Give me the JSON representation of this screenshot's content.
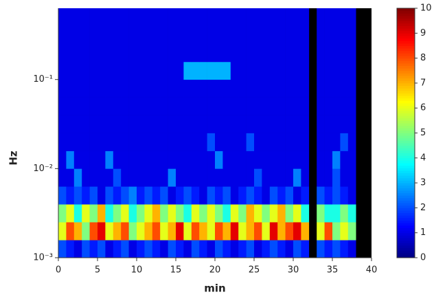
{
  "chart_data": {
    "type": "heatmap",
    "x_label": "min",
    "y_label": "Hz",
    "xbins": [
      0,
      1,
      2,
      3,
      4,
      5,
      6,
      7,
      8,
      9,
      10,
      11,
      12,
      13,
      14,
      15,
      16,
      17,
      18,
      19,
      20,
      21,
      22,
      23,
      24,
      25,
      26,
      27,
      28,
      29,
      30,
      31,
      32,
      33,
      34,
      35,
      36,
      37,
      38,
      39,
      40
    ],
    "ybins": [
      0.001,
      0.00158,
      0.00251,
      0.00398,
      0.00631,
      0.01,
      0.0158,
      0.0251,
      0.0398,
      0.0631,
      0.1,
      0.158,
      0.251,
      0.398,
      0.631
    ],
    "xlim": [
      0,
      40
    ],
    "xticks": [
      0,
      5,
      10,
      15,
      20,
      25,
      30,
      35,
      40
    ],
    "ylim": [
      0.001,
      0.631
    ],
    "log_y": true,
    "yticks": [
      {
        "value": 0.001,
        "label": "10⁻³"
      },
      {
        "value": 0.01,
        "label": "10⁻²"
      },
      {
        "value": 0.1,
        "label": "10⁻¹"
      }
    ],
    "colormap": "jet",
    "clim": [
      0,
      10
    ],
    "cticks": [
      0,
      1,
      2,
      3,
      4,
      5,
      6,
      7,
      8,
      9,
      10
    ],
    "z": [
      [
        2,
        1.5,
        1,
        2,
        1.5,
        2,
        1,
        1.5,
        2,
        1,
        1.5,
        2,
        1.5,
        1,
        2,
        1.5,
        1,
        2,
        1.5,
        1,
        2,
        1.5,
        1,
        1.5,
        2,
        1,
        1.5,
        2,
        1.5,
        1,
        2,
        1.5,
        null,
        2,
        1.5,
        2,
        1.5,
        1,
        null,
        null
      ],
      [
        6,
        8,
        7,
        5,
        8,
        9,
        6,
        7,
        8,
        5,
        6,
        7,
        8,
        6,
        7,
        9,
        6,
        8,
        7,
        6,
        8,
        7,
        9,
        6,
        7,
        8,
        6,
        9,
        7,
        8,
        9,
        7,
        null,
        6,
        8,
        5,
        6,
        5,
        null,
        null
      ],
      [
        5,
        6,
        4,
        6,
        5,
        7,
        4,
        5,
        6,
        4,
        5,
        6,
        7,
        5,
        6,
        5,
        4,
        6,
        5,
        6,
        5,
        4,
        6,
        5,
        7,
        6,
        5,
        6,
        7,
        5,
        6,
        4,
        null,
        5,
        4,
        4,
        5,
        4,
        null,
        null
      ],
      [
        2,
        1.5,
        2,
        1.5,
        2,
        1,
        2,
        1.5,
        2,
        2.5,
        1.5,
        2,
        1.5,
        2,
        1,
        1.5,
        2,
        1.5,
        1,
        2,
        1.5,
        2,
        1,
        1.5,
        2,
        1.5,
        1,
        2,
        1.5,
        2,
        1,
        1.5,
        null,
        2,
        1.5,
        2,
        1.5,
        1,
        null,
        null
      ],
      [
        1,
        1,
        2.5,
        1,
        1,
        1,
        1,
        2,
        1,
        1,
        1,
        1,
        1,
        1,
        2.5,
        1,
        1,
        1,
        1,
        1,
        1,
        1,
        1,
        1,
        1,
        2,
        1,
        1,
        1,
        1,
        2.5,
        1,
        null,
        1,
        1,
        2,
        1,
        1,
        null,
        null
      ],
      [
        1,
        2.5,
        1,
        1,
        1,
        1,
        2.5,
        1,
        1,
        1,
        1,
        1,
        1,
        1,
        1,
        1,
        1,
        1,
        1,
        1,
        2.5,
        1,
        1,
        1,
        1,
        1,
        1,
        1,
        1,
        1,
        1,
        1,
        null,
        1,
        1,
        2.5,
        1,
        1,
        null,
        null
      ],
      [
        1,
        1,
        1,
        1,
        1,
        1,
        1,
        1,
        1,
        1,
        1,
        1,
        1,
        1,
        1,
        1,
        1,
        1,
        1,
        2,
        1,
        1,
        1,
        1,
        2,
        1,
        1,
        1,
        1,
        1,
        1,
        1,
        null,
        1,
        1,
        1,
        2,
        1,
        null,
        null
      ],
      [
        1,
        1,
        1,
        1,
        1,
        1,
        1,
        1,
        1,
        1,
        1,
        1,
        1,
        1,
        1,
        1,
        1,
        1,
        1,
        1,
        1,
        1,
        1,
        1,
        1,
        1,
        1,
        1,
        1,
        1,
        1,
        1,
        null,
        1,
        1,
        1,
        1,
        1,
        null,
        null
      ],
      [
        1,
        1,
        1,
        1,
        1,
        1,
        1,
        1,
        1,
        1,
        1,
        1,
        1,
        1,
        1,
        1,
        1,
        1,
        1,
        1,
        1,
        1,
        1,
        1,
        1,
        1,
        1,
        1,
        1,
        1,
        1,
        1,
        null,
        1,
        1,
        1,
        1,
        1,
        null,
        null
      ],
      [
        1,
        1,
        1,
        1,
        1,
        1,
        1,
        1,
        1,
        1,
        1,
        1,
        1,
        1,
        1,
        1,
        1,
        1,
        1,
        1,
        1,
        1,
        1,
        1,
        1,
        1,
        1,
        1,
        1,
        1,
        1,
        1,
        null,
        1,
        1,
        1,
        1,
        1,
        null,
        null
      ],
      [
        1,
        1,
        1,
        1,
        1,
        1,
        1,
        1,
        1,
        1,
        1,
        1,
        1,
        1,
        1,
        1,
        3,
        3,
        3,
        3,
        3,
        3,
        1,
        1,
        1,
        1,
        1,
        1,
        1,
        1,
        1,
        1,
        null,
        1,
        1,
        1,
        1,
        1,
        null,
        null
      ],
      [
        1,
        1,
        1,
        1,
        1,
        1,
        1,
        1,
        1,
        1,
        1,
        1,
        1,
        1,
        1,
        1,
        1,
        1,
        1,
        1,
        1,
        1,
        1,
        1,
        1,
        1,
        1,
        1,
        1,
        1,
        1,
        1,
        null,
        1,
        1,
        1,
        1,
        1,
        null,
        null
      ],
      [
        1,
        1,
        1,
        1,
        1,
        1,
        1,
        1,
        1,
        1,
        1,
        1,
        1,
        1,
        1,
        1,
        1,
        1,
        1,
        1,
        1,
        1,
        1,
        1,
        1,
        1,
        1,
        1,
        1,
        1,
        1,
        1,
        null,
        1,
        1,
        1,
        1,
        1,
        null,
        null
      ],
      [
        1,
        1,
        1,
        1,
        1,
        1,
        1,
        1,
        1,
        1,
        1,
        1,
        1,
        1,
        1,
        1,
        1,
        1,
        1,
        1,
        1,
        1,
        1,
        1,
        1,
        1,
        1,
        1,
        1,
        1,
        1,
        1,
        null,
        1,
        1,
        1,
        1,
        1,
        null,
        null
      ]
    ]
  }
}
